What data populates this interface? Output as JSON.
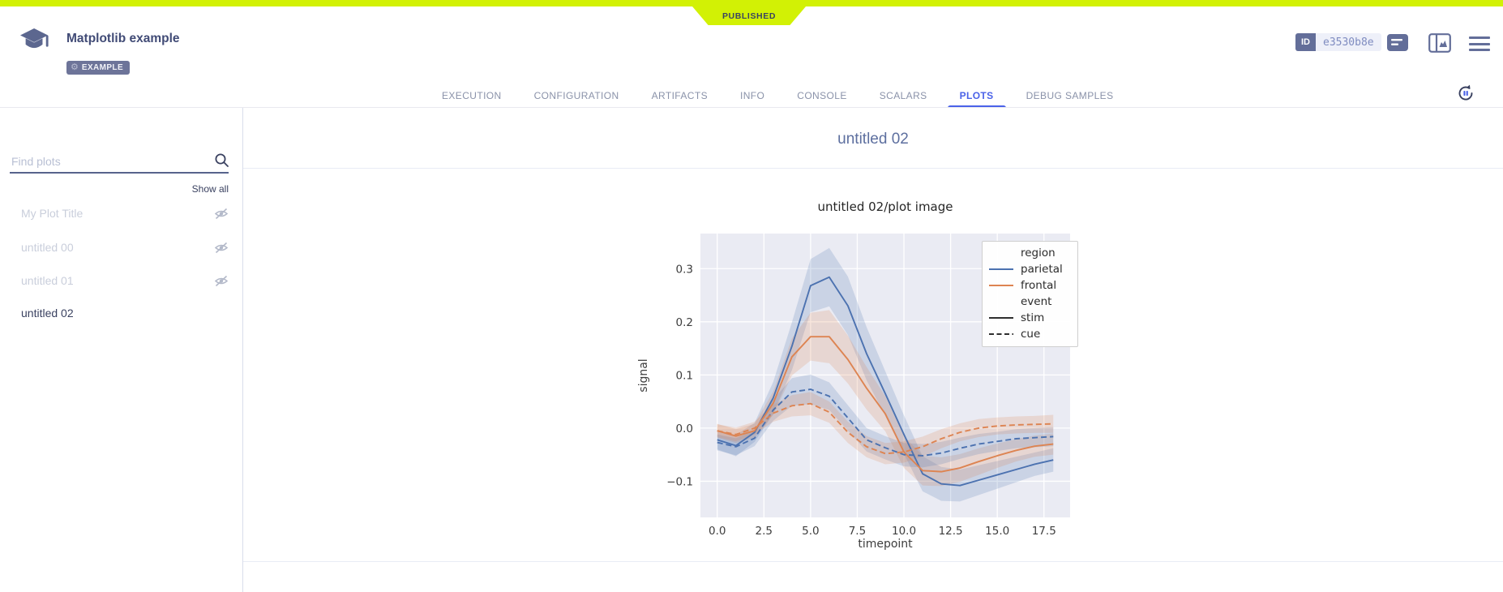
{
  "status_ribbon": {
    "label": "PUBLISHED"
  },
  "header": {
    "title": "Matplotlib example",
    "project_tag": "EXAMPLE",
    "id_badge": "ID",
    "id_value": "e3530b8e"
  },
  "tabs": {
    "items": [
      {
        "label": "EXECUTION"
      },
      {
        "label": "CONFIGURATION"
      },
      {
        "label": "ARTIFACTS"
      },
      {
        "label": "INFO"
      },
      {
        "label": "CONSOLE"
      },
      {
        "label": "SCALARS"
      },
      {
        "label": "PLOTS",
        "active": true
      },
      {
        "label": "DEBUG SAMPLES"
      }
    ]
  },
  "sidebar": {
    "search_placeholder": "Find plots",
    "show_all": "Show all",
    "items": [
      {
        "label": "My Plot Title",
        "hidden": true
      },
      {
        "label": "untitled 00",
        "hidden": true
      },
      {
        "label": "untitled 01",
        "hidden": true
      },
      {
        "label": "untitled 02",
        "hidden": false,
        "active": true
      }
    ]
  },
  "main": {
    "group_title": "untitled 02"
  },
  "icons": {
    "logo": "graduation-cap",
    "tag": "gear",
    "toolbar": [
      "details-list",
      "split-panel-chart",
      "hamburger-menu"
    ],
    "content": [
      "auto-refresh-pause",
      "search-magnifier",
      "eye-off"
    ]
  },
  "colors": {
    "status_published": "#d2f105",
    "tab_active": "#4a62e8",
    "icon_slate": "#636e99",
    "parietal_blue": "#4c72b0",
    "frontal_orange": "#dd8452",
    "plot_background": "#eaebf3"
  },
  "chart_data": {
    "type": "line",
    "title": "untitled 02/plot image",
    "xlabel": "timepoint",
    "ylabel": "signal",
    "grid": true,
    "plot_bg": "#eaebf3",
    "grid_color": "#ffffff",
    "x": [
      0,
      1,
      2,
      3,
      4,
      5,
      6,
      7,
      8,
      9,
      10,
      11,
      12,
      13,
      14,
      15,
      16,
      17,
      18
    ],
    "xticks": [
      0,
      2.5,
      5,
      7.5,
      10,
      12.5,
      15,
      17.5
    ],
    "yticks": [
      0.3,
      0.2,
      0.1,
      0.0,
      -0.1
    ],
    "xlim": [
      -0.9,
      18.9
    ],
    "ylim": [
      -0.168,
      0.366
    ],
    "legend": {
      "position": "upper right",
      "entries": [
        {
          "label": "region",
          "type": "header"
        },
        {
          "label": "parietal",
          "type": "line",
          "color": "#4c72b0",
          "dash": "solid"
        },
        {
          "label": "frontal",
          "type": "line",
          "color": "#dd8452",
          "dash": "solid"
        },
        {
          "label": "event",
          "type": "header"
        },
        {
          "label": "stim",
          "type": "line",
          "color": "#2e2e2e",
          "dash": "solid"
        },
        {
          "label": "cue",
          "type": "line",
          "color": "#2e2e2e",
          "dash": "dashed"
        }
      ]
    },
    "series": [
      {
        "name": "parietal/stim",
        "color": "#4c72b0",
        "dash": "solid",
        "values": [
          -0.022,
          -0.033,
          -0.008,
          0.057,
          0.154,
          0.268,
          0.284,
          0.23,
          0.14,
          0.065,
          -0.012,
          -0.086,
          -0.105,
          -0.108,
          -0.098,
          -0.088,
          -0.078,
          -0.068,
          -0.06
        ],
        "band_delta": [
          0.018,
          0.02,
          0.018,
          0.03,
          0.045,
          0.05,
          0.055,
          0.055,
          0.05,
          0.042,
          0.036,
          0.033,
          0.032,
          0.03,
          0.028,
          0.026,
          0.024,
          0.022,
          0.022
        ]
      },
      {
        "name": "frontal/stim",
        "color": "#dd8452",
        "dash": "solid",
        "values": [
          -0.005,
          -0.015,
          -0.005,
          0.047,
          0.134,
          0.172,
          0.172,
          0.129,
          0.075,
          0.027,
          -0.045,
          -0.08,
          -0.082,
          -0.075,
          -0.063,
          -0.052,
          -0.042,
          -0.034,
          -0.03
        ],
        "band_delta": [
          0.013,
          0.013,
          0.013,
          0.022,
          0.035,
          0.045,
          0.05,
          0.045,
          0.04,
          0.033,
          0.03,
          0.028,
          0.027,
          0.026,
          0.025,
          0.023,
          0.021,
          0.02,
          0.02
        ]
      },
      {
        "name": "parietal/cue",
        "color": "#4c72b0",
        "dash": "dashed",
        "values": [
          -0.027,
          -0.035,
          -0.019,
          0.034,
          0.068,
          0.073,
          0.06,
          0.019,
          -0.022,
          -0.037,
          -0.05,
          -0.052,
          -0.047,
          -0.038,
          -0.03,
          -0.025,
          -0.02,
          -0.018,
          -0.016
        ],
        "band_delta": [
          0.015,
          0.016,
          0.015,
          0.02,
          0.026,
          0.028,
          0.026,
          0.024,
          0.022,
          0.022,
          0.022,
          0.022,
          0.021,
          0.02,
          0.019,
          0.018,
          0.018,
          0.018,
          0.018
        ]
      },
      {
        "name": "frontal/cue",
        "color": "#dd8452",
        "dash": "dashed",
        "values": [
          -0.005,
          -0.012,
          0.0,
          0.028,
          0.042,
          0.046,
          0.03,
          -0.008,
          -0.035,
          -0.048,
          -0.045,
          -0.035,
          -0.02,
          -0.008,
          0.0,
          0.004,
          0.006,
          0.007,
          0.008
        ],
        "band_delta": [
          0.012,
          0.013,
          0.012,
          0.016,
          0.02,
          0.022,
          0.02,
          0.02,
          0.02,
          0.02,
          0.02,
          0.019,
          0.018,
          0.017,
          0.017,
          0.016,
          0.016,
          0.016,
          0.017
        ]
      }
    ]
  }
}
